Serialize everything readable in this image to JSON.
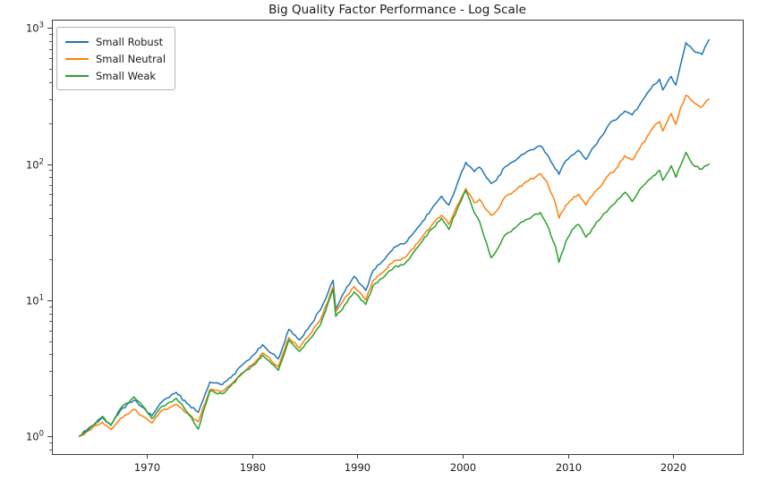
{
  "title": "Big Quality Factor Performance - Log Scale",
  "colors": {
    "robust": "#1f77b4",
    "neutral": "#ff7f0e",
    "weak": "#2ca02c",
    "axis": "#3c3c3c",
    "text": "#1a1a1a"
  },
  "chart_data": {
    "type": "line",
    "title": "Big Quality Factor Performance - Log Scale",
    "xlabel": "",
    "ylabel": "",
    "yscale": "log",
    "xlim": [
      1961.0,
      2026.6
    ],
    "ylim": [
      0.74,
      1150
    ],
    "grid": false,
    "legend_position": "upper left",
    "x_ticks": [
      1970,
      1980,
      1990,
      2000,
      2010,
      2020
    ],
    "y_ticks": [
      {
        "base": 10,
        "exp": 0
      },
      {
        "base": 10,
        "exp": 1
      },
      {
        "base": 10,
        "exp": 2
      },
      {
        "base": 10,
        "exp": 3
      }
    ],
    "x": [
      1963.6,
      1964.5,
      1965.8,
      1966.6,
      1967.5,
      1968.8,
      1969.5,
      1970.5,
      1971.3,
      1972.8,
      1973.8,
      1974.9,
      1976.0,
      1977.2,
      1978.0,
      1979.0,
      1980.2,
      1981.0,
      1982.5,
      1983.5,
      1984.5,
      1985.5,
      1986.5,
      1987.7,
      1987.95,
      1989.0,
      1989.7,
      1990.8,
      1991.5,
      1992.6,
      1993.5,
      1994.5,
      1996.0,
      1997.0,
      1998.0,
      1998.7,
      1999.5,
      2000.3,
      2001.1,
      2001.6,
      2002.7,
      2003.2,
      2004.0,
      2005.0,
      2006.0,
      2007.4,
      2008.0,
      2008.8,
      2009.15,
      2009.8,
      2010.4,
      2011.0,
      2011.7,
      2012.5,
      2013.2,
      2013.9,
      2014.5,
      2015.4,
      2016.1,
      2016.8,
      2017.5,
      2018.1,
      2018.7,
      2019.0,
      2019.8,
      2020.25,
      2020.7,
      2021.2,
      2021.8,
      2022.3,
      2022.75,
      2023.0,
      2023.4
    ],
    "series": [
      {
        "name": "Small Robust",
        "color": "#1f77b4",
        "values": [
          1.0,
          1.15,
          1.38,
          1.22,
          1.55,
          1.85,
          1.65,
          1.42,
          1.75,
          2.1,
          1.75,
          1.5,
          2.5,
          2.4,
          2.7,
          3.3,
          4.0,
          4.7,
          3.7,
          6.1,
          5.1,
          6.5,
          8.5,
          14.0,
          8.6,
          12.5,
          15.0,
          11.8,
          16.5,
          20.0,
          24.5,
          26.0,
          36.0,
          46.0,
          58.0,
          50.0,
          72.0,
          103,
          88,
          95,
          72,
          76,
          95,
          106,
          122,
          136,
          118,
          92,
          84,
          106,
          116,
          126,
          108,
          135,
          160,
          196,
          210,
          245,
          230,
          272,
          330,
          382,
          420,
          350,
          440,
          380,
          540,
          780,
          700,
          660,
          640,
          720,
          820
        ]
      },
      {
        "name": "Small Neutral",
        "color": "#ff7f0e",
        "values": [
          1.0,
          1.1,
          1.27,
          1.12,
          1.35,
          1.58,
          1.42,
          1.25,
          1.52,
          1.72,
          1.48,
          1.28,
          2.2,
          2.15,
          2.4,
          2.9,
          3.45,
          4.1,
          3.25,
          5.3,
          4.45,
          5.6,
          7.2,
          12.5,
          8.2,
          10.8,
          12.6,
          10.0,
          14.0,
          16.5,
          19.5,
          20.5,
          28.0,
          35.0,
          42.0,
          36.0,
          50.0,
          66.0,
          52.0,
          55.0,
          42.0,
          45.0,
          57.0,
          64.0,
          74.0,
          85.0,
          74.0,
          52.0,
          40.0,
          50.0,
          55.0,
          60.0,
          50.0,
          62.0,
          70.0,
          84.0,
          91.0,
          115,
          107,
          130,
          158,
          186,
          205,
          175,
          235,
          196,
          260,
          320,
          290,
          272,
          264,
          280,
          300
        ]
      },
      {
        "name": "Small Weak",
        "color": "#2ca02c",
        "values": [
          1.0,
          1.12,
          1.4,
          1.2,
          1.6,
          1.95,
          1.72,
          1.35,
          1.62,
          1.9,
          1.52,
          1.13,
          2.15,
          2.05,
          2.35,
          2.85,
          3.35,
          3.95,
          3.05,
          5.1,
          4.2,
          5.2,
          6.6,
          12.0,
          7.6,
          9.6,
          11.5,
          9.3,
          12.8,
          15.0,
          17.5,
          18.5,
          26.0,
          33.0,
          40.0,
          33.0,
          47.0,
          64.0,
          44.0,
          38.0,
          20.5,
          23.0,
          30.0,
          34.0,
          39.0,
          44.0,
          36.0,
          25.0,
          19.0,
          27.0,
          33.0,
          36.0,
          29.0,
          35.0,
          41.0,
          47.0,
          52.0,
          62.0,
          53.0,
          65.0,
          74.0,
          82.0,
          90.0,
          76.0,
          97.0,
          80.0,
          98.0,
          122,
          100,
          96.0,
          92.0,
          97.0,
          100
        ]
      }
    ]
  }
}
